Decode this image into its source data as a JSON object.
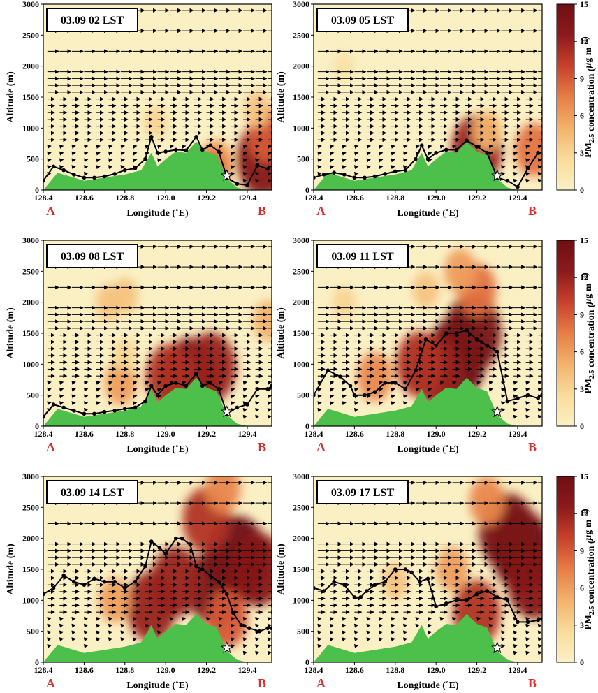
{
  "chart_data": [
    {
      "type": "heatmap",
      "title": "03.09 02 LST",
      "xlabel": "Longitude (˚E)",
      "ylabel": "Altitude (m)",
      "start_label": "A",
      "end_label": "B",
      "xlim": [
        128.4,
        129.52
      ],
      "ylim": [
        0,
        3000
      ],
      "x_ticks": [
        "128.4",
        "128.6",
        "128.8",
        "129.0",
        "129.2",
        "129.4"
      ],
      "y_ticks": [
        "0",
        "500",
        "1000",
        "1500",
        "2000",
        "2500",
        "3000"
      ],
      "boundary_layer_height": {
        "x": [
          128.4,
          128.45,
          128.5,
          128.55,
          128.6,
          128.65,
          128.7,
          128.75,
          128.8,
          128.85,
          128.9,
          128.93,
          128.96,
          129.0,
          129.05,
          129.1,
          129.15,
          129.18,
          129.22,
          129.26,
          129.3,
          129.35,
          129.4,
          129.45,
          129.5
        ],
        "y": [
          150,
          380,
          320,
          250,
          200,
          200,
          220,
          260,
          320,
          350,
          500,
          860,
          600,
          620,
          650,
          640,
          860,
          650,
          720,
          620,
          200,
          100,
          80,
          400,
          340
        ]
      },
      "pm25_hotspots": [
        {
          "lon": 129.48,
          "alt": 500,
          "value": 13
        },
        {
          "lon": 129.5,
          "alt": 900,
          "value": 9
        },
        {
          "lon": 129.25,
          "alt": 450,
          "value": 6
        },
        {
          "lon": 129.45,
          "alt": 1300,
          "value": 4
        },
        {
          "lon": 128.95,
          "alt": 1100,
          "value": 3
        },
        {
          "lon": 129.22,
          "alt": 250,
          "value": 8
        }
      ]
    },
    {
      "type": "heatmap",
      "title": "03.09 05 LST",
      "xlabel": "Longitude (˚E)",
      "ylabel": "Altitude (m)",
      "start_label": "A",
      "end_label": "B",
      "xlim": [
        128.4,
        129.52
      ],
      "ylim": [
        0,
        3000
      ],
      "x_ticks": [
        "128.4",
        "128.6",
        "128.8",
        "129.0",
        "129.2",
        "129.4"
      ],
      "y_ticks": [
        "0",
        "500",
        "1000",
        "1500",
        "2000",
        "2500",
        "3000"
      ],
      "boundary_layer_height": {
        "x": [
          128.4,
          128.45,
          128.5,
          128.55,
          128.6,
          128.65,
          128.7,
          128.75,
          128.8,
          128.85,
          128.9,
          128.93,
          128.96,
          129.0,
          129.05,
          129.1,
          129.15,
          129.2,
          129.25,
          129.3,
          129.35,
          129.4,
          129.45,
          129.5
        ],
        "y": [
          200,
          250,
          280,
          250,
          200,
          200,
          220,
          260,
          300,
          320,
          500,
          720,
          500,
          600,
          650,
          650,
          800,
          700,
          600,
          200,
          150,
          50,
          350,
          600
        ]
      },
      "pm25_hotspots": [
        {
          "lon": 129.2,
          "alt": 650,
          "value": 12
        },
        {
          "lon": 129.48,
          "alt": 650,
          "value": 8
        },
        {
          "lon": 129.25,
          "alt": 950,
          "value": 5
        },
        {
          "lon": 128.55,
          "alt": 2000,
          "value": 2
        }
      ]
    },
    {
      "type": "heatmap",
      "title": "03.09 08 LST",
      "xlabel": "Longitude (˚E)",
      "ylabel": "Altitude (m)",
      "start_label": "A",
      "end_label": "B",
      "xlim": [
        128.4,
        129.52
      ],
      "ylim": [
        0,
        3000
      ],
      "x_ticks": [
        "128.4",
        "128.6",
        "128.8",
        "129.0",
        "129.2",
        "129.4"
      ],
      "y_ticks": [
        "0",
        "500",
        "1000",
        "1500",
        "2000",
        "2500",
        "3000"
      ],
      "boundary_layer_height": {
        "x": [
          128.4,
          128.45,
          128.5,
          128.55,
          128.6,
          128.65,
          128.7,
          128.75,
          128.8,
          128.85,
          128.9,
          128.93,
          128.96,
          129.0,
          129.05,
          129.1,
          129.15,
          129.18,
          129.22,
          129.26,
          129.3,
          129.35,
          129.4,
          129.45,
          129.5,
          129.52
        ],
        "y": [
          150,
          350,
          300,
          250,
          200,
          200,
          230,
          250,
          280,
          300,
          400,
          650,
          500,
          650,
          700,
          650,
          850,
          650,
          700,
          600,
          200,
          300,
          350,
          600,
          600,
          650
        ]
      },
      "pm25_hotspots": [
        {
          "lon": 129.12,
          "alt": 800,
          "value": 14
        },
        {
          "lon": 129.22,
          "alt": 950,
          "value": 12
        },
        {
          "lon": 129.02,
          "alt": 800,
          "value": 11
        },
        {
          "lon": 128.78,
          "alt": 700,
          "value": 6
        },
        {
          "lon": 128.72,
          "alt": 2000,
          "value": 4
        },
        {
          "lon": 128.8,
          "alt": 2100,
          "value": 4
        },
        {
          "lon": 129.5,
          "alt": 1700,
          "value": 5
        },
        {
          "lon": 128.8,
          "alt": 1150,
          "value": 3
        }
      ]
    },
    {
      "type": "heatmap",
      "title": "03.09 11 LST",
      "xlabel": "Longitude (˚E)",
      "ylabel": "Altitude (m)",
      "start_label": "A",
      "end_label": "B",
      "xlim": [
        128.4,
        129.52
      ],
      "ylim": [
        0,
        3000
      ],
      "x_ticks": [
        "128.4",
        "128.6",
        "128.8",
        "129.0",
        "129.2",
        "129.4"
      ],
      "y_ticks": [
        "0",
        "500",
        "1000",
        "1500",
        "2000",
        "2500",
        "3000"
      ],
      "boundary_layer_height": {
        "x": [
          128.4,
          128.47,
          128.53,
          128.58,
          128.6,
          128.65,
          128.7,
          128.75,
          128.8,
          128.85,
          128.9,
          128.95,
          129.0,
          129.05,
          129.1,
          129.15,
          129.2,
          129.25,
          129.3,
          129.35,
          129.4,
          129.45,
          129.5,
          129.52
        ],
        "y": [
          500,
          900,
          800,
          650,
          500,
          500,
          550,
          700,
          700,
          600,
          900,
          1400,
          1300,
          1500,
          1500,
          1550,
          1400,
          1300,
          1200,
          400,
          450,
          500,
          450,
          500
        ]
      },
      "pm25_hotspots": [
        {
          "lon": 129.1,
          "alt": 1100,
          "value": 15
        },
        {
          "lon": 129.18,
          "alt": 1500,
          "value": 14
        },
        {
          "lon": 129.0,
          "alt": 900,
          "value": 12
        },
        {
          "lon": 128.92,
          "alt": 1000,
          "value": 11
        },
        {
          "lon": 129.2,
          "alt": 2200,
          "value": 8
        },
        {
          "lon": 129.12,
          "alt": 2500,
          "value": 6
        },
        {
          "lon": 128.7,
          "alt": 800,
          "value": 7
        },
        {
          "lon": 128.55,
          "alt": 2000,
          "value": 3
        },
        {
          "lon": 128.95,
          "alt": 2200,
          "value": 4
        }
      ]
    },
    {
      "type": "heatmap",
      "title": "03.09 14 LST",
      "xlabel": "Longitude (˚E)",
      "ylabel": "Altitude (m)",
      "start_label": "A",
      "end_label": "B",
      "xlim": [
        128.4,
        129.52
      ],
      "ylim": [
        0,
        3000
      ],
      "x_ticks": [
        "128.4",
        "128.6",
        "128.8",
        "129.0",
        "129.2",
        "129.4"
      ],
      "y_ticks": [
        "0",
        "500",
        "1000",
        "1500",
        "2000",
        "2500",
        "3000"
      ],
      "boundary_layer_height": {
        "x": [
          128.4,
          128.45,
          128.5,
          128.55,
          128.6,
          128.65,
          128.7,
          128.75,
          128.8,
          128.85,
          128.9,
          128.93,
          128.97,
          129.0,
          129.05,
          129.08,
          129.12,
          129.15,
          129.18,
          129.22,
          129.26,
          129.3,
          129.33,
          129.37,
          129.41,
          129.46,
          129.5,
          129.52
        ],
        "y": [
          1100,
          1200,
          1400,
          1300,
          1250,
          1350,
          1300,
          1300,
          1200,
          1300,
          1550,
          1950,
          1850,
          1750,
          2000,
          2000,
          1900,
          1550,
          1500,
          1400,
          1300,
          1100,
          800,
          600,
          550,
          500,
          550,
          550
        ]
      },
      "pm25_hotspots": [
        {
          "lon": 129.35,
          "alt": 1700,
          "value": 15
        },
        {
          "lon": 129.25,
          "alt": 1200,
          "value": 14
        },
        {
          "lon": 129.2,
          "alt": 2300,
          "value": 11
        },
        {
          "lon": 129.45,
          "alt": 1500,
          "value": 13
        },
        {
          "lon": 129.05,
          "alt": 1300,
          "value": 12
        },
        {
          "lon": 128.93,
          "alt": 900,
          "value": 12
        },
        {
          "lon": 128.75,
          "alt": 1000,
          "value": 6
        },
        {
          "lon": 129.28,
          "alt": 2800,
          "value": 7
        },
        {
          "lon": 129.3,
          "alt": 700,
          "value": 9
        }
      ]
    },
    {
      "type": "heatmap",
      "title": "03.09 17 LST",
      "xlabel": "Longitude (˚E)",
      "ylabel": "Altitude (m)",
      "start_label": "A",
      "end_label": "B",
      "xlim": [
        128.4,
        129.52
      ],
      "ylim": [
        0,
        3000
      ],
      "x_ticks": [
        "128.4",
        "128.6",
        "128.8",
        "129.0",
        "129.2",
        "129.4"
      ],
      "y_ticks": [
        "0",
        "500",
        "1000",
        "1500",
        "2000",
        "2500",
        "3000"
      ],
      "boundary_layer_height": {
        "x": [
          128.4,
          128.45,
          128.5,
          128.55,
          128.6,
          128.63,
          128.66,
          128.7,
          128.75,
          128.8,
          128.85,
          128.88,
          128.92,
          128.96,
          129.0,
          129.05,
          129.1,
          129.15,
          129.2,
          129.25,
          129.3,
          129.35,
          129.4,
          129.45,
          129.5,
          129.52
        ],
        "y": [
          1200,
          1150,
          1300,
          1250,
          1050,
          1050,
          1150,
          1250,
          1300,
          1500,
          1500,
          1450,
          1300,
          1350,
          900,
          950,
          1000,
          1000,
          1100,
          1150,
          1050,
          1000,
          650,
          650,
          680,
          700
        ]
      },
      "pm25_hotspots": [
        {
          "lon": 129.42,
          "alt": 1800,
          "value": 15
        },
        {
          "lon": 129.35,
          "alt": 2100,
          "value": 14
        },
        {
          "lon": 129.48,
          "alt": 1300,
          "value": 13
        },
        {
          "lon": 129.2,
          "alt": 800,
          "value": 11
        },
        {
          "lon": 129.08,
          "alt": 1500,
          "value": 6
        },
        {
          "lon": 128.8,
          "alt": 1300,
          "value": 4
        },
        {
          "lon": 129.25,
          "alt": 2600,
          "value": 7
        }
      ]
    }
  ],
  "colorbar": {
    "label_pre": "PM",
    "label_sub": "2.5",
    "label_mid": " concentration (",
    "label_mu": "μ",
    "label_unit": "g m",
    "label_sup": "−3",
    "label_close": ")",
    "ticks": [
      "0",
      "3",
      "6",
      "9",
      "12",
      "15"
    ],
    "min": 0,
    "max": 15,
    "colors": [
      "#fbf0c4",
      "#f9dc9c",
      "#f3b26b",
      "#e77e45",
      "#c9412c",
      "#8d1a1a",
      "#6e0f14"
    ]
  },
  "terrain": {
    "color": "#4dbf4b",
    "x": [
      128.4,
      128.47,
      128.55,
      128.6,
      128.7,
      128.8,
      128.88,
      128.93,
      128.96,
      129.0,
      129.05,
      129.1,
      129.15,
      129.2,
      129.25,
      129.3,
      129.35,
      129.4,
      129.52
    ],
    "y": [
      0,
      280,
      200,
      150,
      200,
      250,
      320,
      600,
      380,
      500,
      620,
      600,
      780,
      620,
      560,
      180,
      40,
      0,
      0
    ]
  },
  "site_marker": {
    "lon": 129.3,
    "alt": 230
  }
}
